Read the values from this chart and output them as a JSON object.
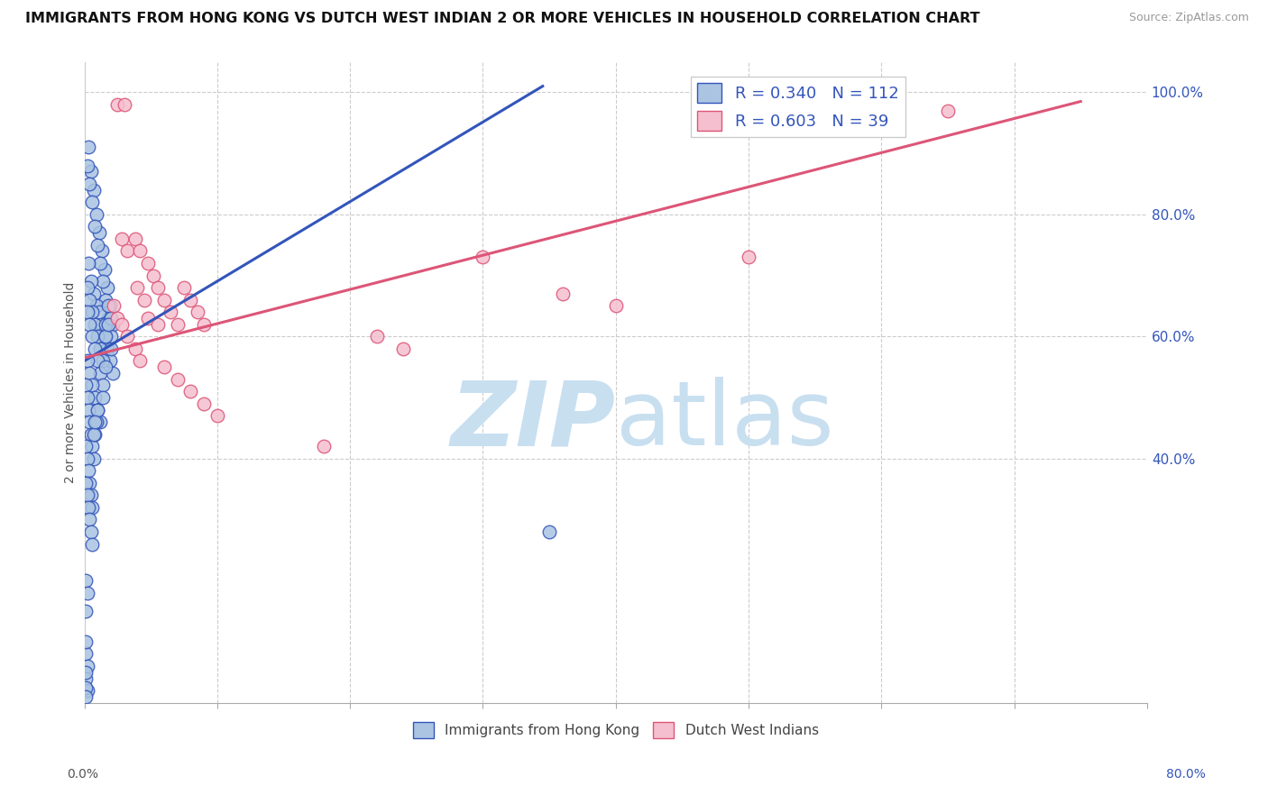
{
  "title": "IMMIGRANTS FROM HONG KONG VS DUTCH WEST INDIAN 2 OR MORE VEHICLES IN HOUSEHOLD CORRELATION CHART",
  "source": "Source: ZipAtlas.com",
  "ylabel": "2 or more Vehicles in Household",
  "legend_hk": "Immigrants from Hong Kong",
  "legend_dwi": "Dutch West Indians",
  "R_hk": 0.34,
  "N_hk": 112,
  "R_dwi": 0.603,
  "N_dwi": 39,
  "color_hk": "#aac4e2",
  "color_dwi": "#f5bfcf",
  "line_color_hk": "#3355bb",
  "line_color_dwi": "#dd5577",
  "watermark_zip": "ZIP",
  "watermark_atlas": "atlas",
  "watermark_color_zip": "#c8dff0",
  "watermark_color_atlas": "#c8dff0",
  "xlim": [
    0.0,
    0.8
  ],
  "ylim": [
    0.0,
    1.05
  ],
  "hk_scatter_x": [
    0.003,
    0.005,
    0.007,
    0.009,
    0.011,
    0.013,
    0.015,
    0.017,
    0.019,
    0.021,
    0.002,
    0.004,
    0.006,
    0.008,
    0.01,
    0.012,
    0.014,
    0.016,
    0.018,
    0.02,
    0.003,
    0.005,
    0.007,
    0.009,
    0.011,
    0.013,
    0.015,
    0.017,
    0.019,
    0.021,
    0.002,
    0.004,
    0.006,
    0.008,
    0.01,
    0.012,
    0.014,
    0.016,
    0.018,
    0.02,
    0.002,
    0.004,
    0.006,
    0.008,
    0.01,
    0.012,
    0.014,
    0.016,
    0.018,
    0.02,
    0.002,
    0.004,
    0.006,
    0.008,
    0.01,
    0.012,
    0.014,
    0.016,
    0.001,
    0.002,
    0.003,
    0.004,
    0.005,
    0.006,
    0.007,
    0.008,
    0.009,
    0.01,
    0.001,
    0.002,
    0.003,
    0.004,
    0.005,
    0.006,
    0.007,
    0.008,
    0.001,
    0.002,
    0.003,
    0.004,
    0.005,
    0.006,
    0.001,
    0.002,
    0.001,
    0.002,
    0.001,
    0.002,
    0.001,
    0.001,
    0.001,
    0.001,
    0.001,
    0.35
  ],
  "hk_scatter_y": [
    0.91,
    0.87,
    0.84,
    0.8,
    0.77,
    0.74,
    0.71,
    0.68,
    0.65,
    0.62,
    0.88,
    0.85,
    0.82,
    0.78,
    0.75,
    0.72,
    0.69,
    0.66,
    0.63,
    0.6,
    0.72,
    0.69,
    0.67,
    0.65,
    0.64,
    0.62,
    0.6,
    0.58,
    0.56,
    0.54,
    0.68,
    0.66,
    0.64,
    0.62,
    0.6,
    0.58,
    0.56,
    0.62,
    0.65,
    0.63,
    0.64,
    0.62,
    0.6,
    0.58,
    0.56,
    0.54,
    0.52,
    0.6,
    0.62,
    0.58,
    0.56,
    0.54,
    0.52,
    0.5,
    0.48,
    0.46,
    0.5,
    0.55,
    0.52,
    0.5,
    0.48,
    0.46,
    0.44,
    0.42,
    0.4,
    0.44,
    0.46,
    0.48,
    0.42,
    0.4,
    0.38,
    0.36,
    0.34,
    0.32,
    0.44,
    0.46,
    0.36,
    0.34,
    0.32,
    0.3,
    0.28,
    0.26,
    0.2,
    0.18,
    0.08,
    0.06,
    0.04,
    0.02,
    0.15,
    0.1,
    0.05,
    0.025,
    0.01,
    0.28
  ],
  "dwi_scatter_x": [
    0.025,
    0.03,
    0.028,
    0.032,
    0.038,
    0.042,
    0.048,
    0.052,
    0.055,
    0.06,
    0.065,
    0.07,
    0.075,
    0.08,
    0.085,
    0.09,
    0.04,
    0.045,
    0.022,
    0.025,
    0.028,
    0.032,
    0.038,
    0.042,
    0.048,
    0.3,
    0.5,
    0.36,
    0.4,
    0.18,
    0.22,
    0.24,
    0.06,
    0.07,
    0.08,
    0.09,
    0.1,
    0.055,
    0.65
  ],
  "dwi_scatter_y": [
    0.98,
    0.98,
    0.76,
    0.74,
    0.76,
    0.74,
    0.72,
    0.7,
    0.68,
    0.66,
    0.64,
    0.62,
    0.68,
    0.66,
    0.64,
    0.62,
    0.68,
    0.66,
    0.65,
    0.63,
    0.62,
    0.6,
    0.58,
    0.56,
    0.63,
    0.73,
    0.73,
    0.67,
    0.65,
    0.42,
    0.6,
    0.58,
    0.55,
    0.53,
    0.51,
    0.49,
    0.47,
    0.62,
    0.97
  ],
  "hk_trendline_x": [
    0.0,
    0.345
  ],
  "hk_trendline_y": [
    0.56,
    1.01
  ],
  "dwi_trendline_x": [
    0.0,
    0.75
  ],
  "dwi_trendline_y": [
    0.565,
    0.985
  ]
}
